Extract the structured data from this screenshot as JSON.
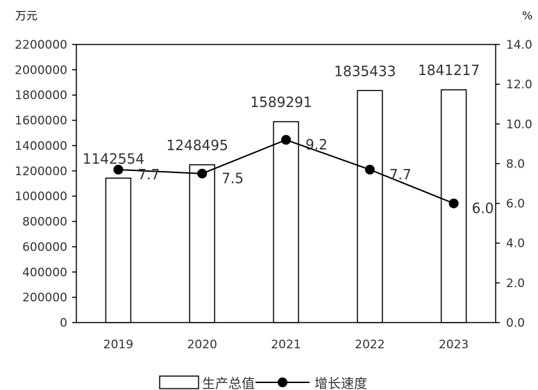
{
  "chart_data": {
    "type": "bar",
    "categories": [
      "2019",
      "2020",
      "2021",
      "2022",
      "2023"
    ],
    "series": [
      {
        "name": "生产总值",
        "type": "bar",
        "axis": "left",
        "values": [
          1142554,
          1248495,
          1589291,
          1835433,
          1841217
        ]
      },
      {
        "name": "增长速度",
        "type": "line",
        "axis": "right",
        "values": [
          7.7,
          7.5,
          9.2,
          7.7,
          6.0
        ]
      }
    ],
    "left_axis": {
      "unit": "万元",
      "ylim": [
        0,
        2200000
      ],
      "ticks": [
        "0",
        "200000",
        "400000",
        "600000",
        "800000",
        "1000000",
        "1200000",
        "1400000",
        "1600000",
        "1800000",
        "2000000",
        "2200000"
      ]
    },
    "right_axis": {
      "unit": "%",
      "ylim": [
        0,
        14
      ],
      "ticks": [
        "0.0",
        "2.0",
        "4.0",
        "6.0",
        "8.0",
        "10.0",
        "12.0",
        "14.0"
      ]
    },
    "bar_labels": [
      "1142554",
      "1248495",
      "1589291",
      "1835433",
      "1841217"
    ],
    "line_labels": [
      "7.7",
      "7.5",
      "9.2",
      "7.7",
      "6.0"
    ],
    "legend_position": "bottom",
    "grid": false,
    "colors": {
      "bar_fill": "#ffffff",
      "bar_stroke": "#000000",
      "line": "#000000",
      "marker": "#000000"
    }
  }
}
